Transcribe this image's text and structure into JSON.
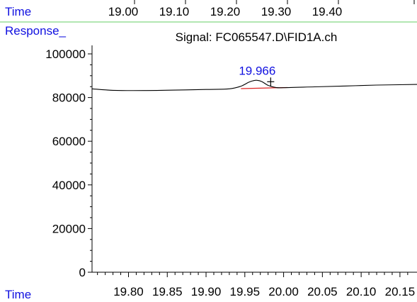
{
  "top_axis": {
    "label": "Time",
    "ticks": [
      "19.00",
      "19.10",
      "19.20",
      "19.30",
      "19.40"
    ]
  },
  "colors": {
    "label_blue": "#1010e0",
    "divider_green": "#66cc66",
    "trace": "#000000",
    "baseline": "#dd2222"
  },
  "chart_data": {
    "type": "line",
    "title": "Signal: FC065547.D\\FID1A.ch",
    "ylabel": "Response_",
    "xlabel": "Time",
    "x_ticks": [
      "19.80",
      "19.85",
      "19.90",
      "19.95",
      "20.00",
      "20.05",
      "20.10",
      "20.15"
    ],
    "y_ticks": [
      "100000",
      "80000",
      "60000",
      "40000",
      "20000",
      "0"
    ],
    "xlim": [
      19.753,
      20.172
    ],
    "ylim": [
      0,
      100000
    ],
    "grid": false,
    "series": [
      {
        "x": [
          19.753,
          19.78,
          19.82,
          19.86,
          19.9,
          19.93,
          19.945,
          19.955,
          19.962,
          19.966,
          19.972,
          19.98,
          19.99,
          20.0,
          20.04,
          20.08,
          20.12,
          20.172
        ],
        "values": [
          84000,
          83300,
          83200,
          83400,
          83700,
          84000,
          85200,
          87000,
          87800,
          87900,
          87300,
          85600,
          84600,
          84500,
          84900,
          85300,
          85700,
          86000
        ]
      }
    ],
    "baseline_segment": {
      "x": [
        19.945,
        20.005
      ],
      "y": [
        84100,
        84600
      ]
    },
    "peaks": [
      {
        "label": "19.966",
        "x": 19.966,
        "y": 87900
      }
    ]
  }
}
